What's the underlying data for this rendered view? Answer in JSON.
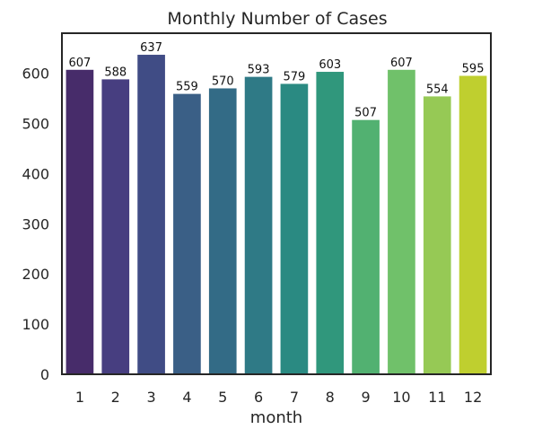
{
  "chart_data": {
    "type": "bar",
    "title": "Monthly Number of Cases",
    "xlabel": "month",
    "ylabel": "",
    "categories": [
      "1",
      "2",
      "3",
      "4",
      "5",
      "6",
      "7",
      "8",
      "9",
      "10",
      "11",
      "12"
    ],
    "values": [
      607,
      588,
      637,
      559,
      570,
      593,
      579,
      603,
      507,
      607,
      554,
      595
    ],
    "data_labels": [
      "607",
      "588",
      "637",
      "559",
      "570",
      "593",
      "579",
      "603",
      "507",
      "607",
      "554",
      "595"
    ],
    "ylim": [
      0,
      680
    ],
    "yticks": [
      0,
      100,
      200,
      300,
      400,
      500,
      600
    ],
    "ytick_labels": [
      "0",
      "100",
      "200",
      "300",
      "400",
      "500",
      "600"
    ],
    "grid": false,
    "legend": "none",
    "bar_colors": [
      "#472c6a",
      "#473e80",
      "#404c85",
      "#3a5f86",
      "#336b86",
      "#2f7a86",
      "#2a8a82",
      "#30977c",
      "#52b171",
      "#70c16a",
      "#96c955",
      "#bfcf2f"
    ],
    "frame_color": "#262626"
  }
}
